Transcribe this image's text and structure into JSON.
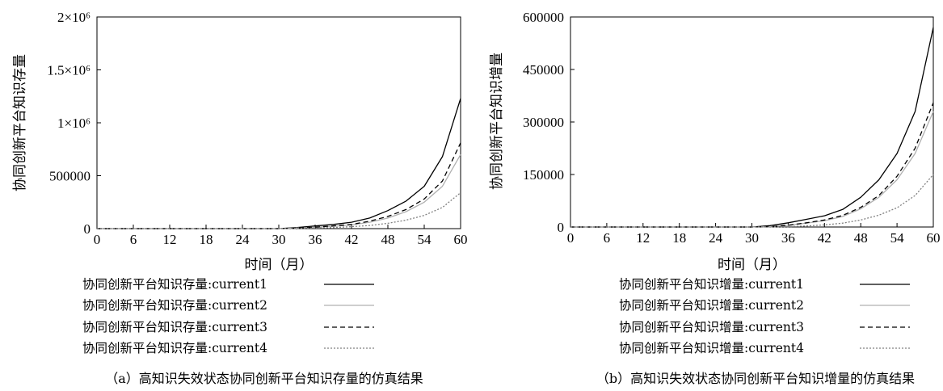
{
  "chart_data": [
    {
      "type": "line",
      "caption": "（a）高知识失效状态协同创新平台知识存量的仿真结果",
      "xlabel": "时间（月）",
      "ylabel": "协同创新平台知识存量",
      "xlim": [
        0,
        60
      ],
      "ylim": [
        0,
        2000000
      ],
      "x_ticks": [
        "0",
        "6",
        "12",
        "18",
        "24",
        "30",
        "36",
        "42",
        "48",
        "54",
        "60"
      ],
      "y_ticks": [
        {
          "value": 0,
          "label": "0"
        },
        {
          "value": 500000,
          "label": "500000"
        },
        {
          "value": 1000000,
          "label": "1×10⁶"
        },
        {
          "value": 1500000,
          "label": "1.5×10⁶"
        },
        {
          "value": 2000000,
          "label": "2×10⁶"
        }
      ],
      "x": [
        0,
        30,
        33,
        36,
        39,
        42,
        45,
        48,
        51,
        54,
        57,
        60
      ],
      "series": [
        {
          "name": "协同创新平台知识存量:current1",
          "color": "#000000",
          "dash": "solid",
          "values": [
            0,
            0,
            10000,
            25000,
            40000,
            60000,
            100000,
            170000,
            260000,
            400000,
            680000,
            1230000
          ]
        },
        {
          "name": "协同创新平台知识存量:current2",
          "color": "#b0b0b0",
          "dash": "solid",
          "values": [
            0,
            0,
            5000,
            12000,
            22000,
            35000,
            60000,
            100000,
            160000,
            250000,
            400000,
            700000
          ]
        },
        {
          "name": "协同创新平台知识存量:current3",
          "color": "#000000",
          "dash": "dashed",
          "values": [
            0,
            0,
            5000,
            14000,
            25000,
            40000,
            70000,
            115000,
            180000,
            280000,
            450000,
            810000
          ]
        },
        {
          "name": "协同创新平台知识存量:current4",
          "color": "#808080",
          "dash": "dotted",
          "values": [
            0,
            0,
            2000,
            5000,
            10000,
            18000,
            30000,
            50000,
            80000,
            125000,
            200000,
            340000
          ]
        }
      ]
    },
    {
      "type": "line",
      "caption": "（b）高知识失效状态协同创新平台知识增量的仿真结果",
      "xlabel": "时间（月）",
      "ylabel": "协同创新平台知识增量",
      "xlim": [
        0,
        60
      ],
      "ylim": [
        0,
        600000
      ],
      "x_ticks": [
        "0",
        "6",
        "12",
        "18",
        "24",
        "30",
        "36",
        "42",
        "48",
        "54",
        "60"
      ],
      "y_ticks": [
        {
          "value": 0,
          "label": "0"
        },
        {
          "value": 150000,
          "label": "150000"
        },
        {
          "value": 300000,
          "label": "300000"
        },
        {
          "value": 450000,
          "label": "450000"
        },
        {
          "value": 600000,
          "label": "600000"
        }
      ],
      "x": [
        0,
        30,
        33,
        36,
        39,
        42,
        45,
        48,
        51,
        54,
        57,
        60
      ],
      "series": [
        {
          "name": "协同创新平台知识增量:current1",
          "color": "#000000",
          "dash": "solid",
          "values": [
            0,
            0,
            4000,
            12000,
            22000,
            32000,
            50000,
            85000,
            135000,
            210000,
            330000,
            570000
          ]
        },
        {
          "name": "协同创新平台知识增量:current2",
          "color": "#b0b0b0",
          "dash": "solid",
          "values": [
            0,
            0,
            1000,
            5000,
            11000,
            18000,
            30000,
            52000,
            85000,
            135000,
            210000,
            330000
          ]
        },
        {
          "name": "协同创新平台知识增量:current3",
          "color": "#000000",
          "dash": "dashed",
          "values": [
            0,
            0,
            1000,
            5000,
            12000,
            20000,
            33000,
            56000,
            90000,
            145000,
            225000,
            355000
          ]
        },
        {
          "name": "协同创新平台知识增量:current4",
          "color": "#808080",
          "dash": "dotted",
          "values": [
            0,
            0,
            200,
            1000,
            3000,
            6000,
            11000,
            20000,
            34000,
            55000,
            90000,
            150000
          ]
        }
      ]
    }
  ]
}
